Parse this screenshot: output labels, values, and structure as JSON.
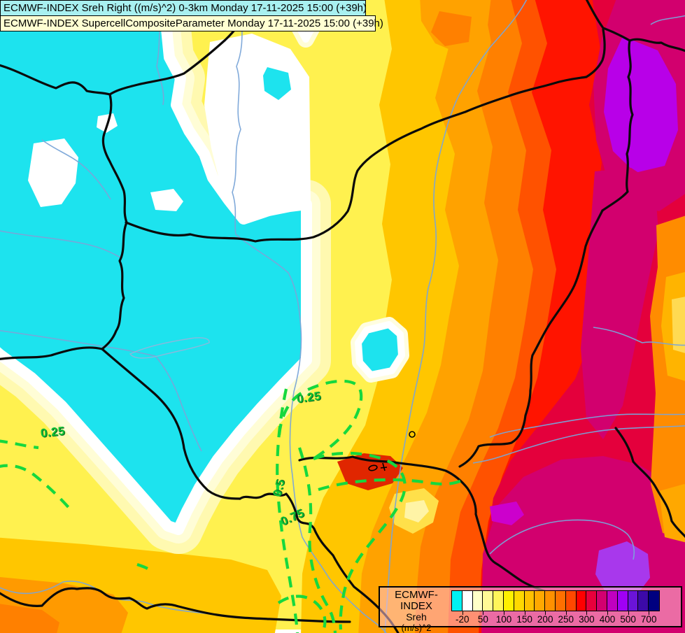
{
  "titles": {
    "line1": "ECMWF-INDEX Sreh Right ((m/s)^2) 0-3km Monday 17-11-2025 15:00 (+39h)",
    "line2": "ECMWF-INDEX SupercellCompositeParameter Monday 17-11-2025 15:00 (+39h)"
  },
  "legend": {
    "title_lines": [
      "ECMWF-INDEX",
      "Sreh",
      "(m/s)^2"
    ],
    "colors": [
      "#00F2F2",
      "#FFFFFF",
      "#FFFFC8",
      "#FFFA96",
      "#FFF55A",
      "#FFF000",
      "#FFD800",
      "#FFC000",
      "#FFA800",
      "#FF9000",
      "#FF7000",
      "#FF4800",
      "#FF0000",
      "#E8003C",
      "#D20070",
      "#C000C0",
      "#A000F5",
      "#6A14D8",
      "#3C0AA8",
      "#000080"
    ],
    "ticks": [
      {
        "label": "-20",
        "boundary": 1
      },
      {
        "label": "50",
        "boundary": 3
      },
      {
        "label": "100",
        "boundary": 5
      },
      {
        "label": "150",
        "boundary": 7
      },
      {
        "label": "200",
        "boundary": 9
      },
      {
        "label": "250",
        "boundary": 11
      },
      {
        "label": "300",
        "boundary": 13
      },
      {
        "label": "400",
        "boundary": 15
      },
      {
        "label": "500",
        "boundary": 17
      },
      {
        "label": "700",
        "boundary": 19
      }
    ]
  },
  "contours": {
    "labels": [
      {
        "text": "0.25"
      },
      {
        "text": "0.5"
      },
      {
        "text": "0.75"
      },
      {
        "text": "0.25"
      }
    ]
  },
  "chart_data": {
    "type": "heatmap",
    "title": "ECMWF-INDEX Sreh Right ((m/s)^2) 0-3km Monday 17-11-2025 15:00 (+39h)",
    "overlay_title": "ECMWF-INDEX SupercellCompositeParameter Monday 17-11-2025 15:00 (+39h)",
    "variable": "Sreh",
    "units": "(m/s)^2",
    "valid_time": "Monday 17-11-2025 15:00",
    "lead_time": "+39h",
    "colorbar_tick_labels": [
      -20,
      50,
      100,
      150,
      200,
      250,
      300,
      400,
      500,
      700
    ],
    "colorbar_colors": [
      "#00F2F2",
      "#FFFFFF",
      "#FFFFC8",
      "#FFFA96",
      "#FFF55A",
      "#FFF000",
      "#FFD800",
      "#FFC000",
      "#FFA800",
      "#FF9000",
      "#FF7000",
      "#FF4800",
      "#FF0000",
      "#E8003C",
      "#D20070",
      "#C000C0",
      "#A000F5",
      "#6A14D8",
      "#3C0AA8",
      "#000080"
    ],
    "overlay_contour_levels": [
      0.25,
      0.5,
      0.75
    ],
    "overlay_contour_style": "green dashed",
    "legend_position": "bottom-right",
    "field_summary": "Cyan (negative/low SREH) blob over the west-central map area ringed by white and cream; values increase eastward through yellow, gold, orange and red; crimson and magenta along the east with purple maxima in the top-right and a purple patch bottom-right; thin orange-yellow strip at the far right edge."
  }
}
